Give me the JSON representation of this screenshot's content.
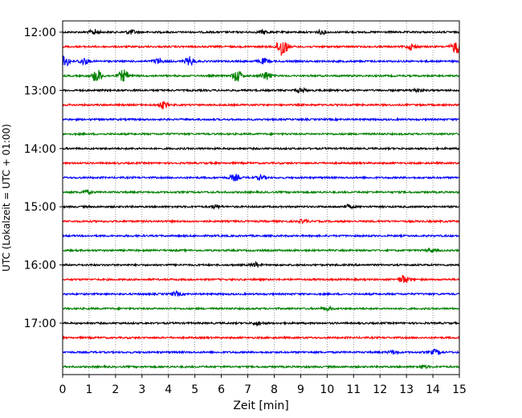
{
  "chart_data": {
    "type": "line",
    "title": "",
    "xlabel": "Zeit  [min]",
    "ylabel": "UTC (Lokalzeit = UTC + 01:00)",
    "xlim": [
      0,
      15
    ],
    "x_ticks": [
      0,
      1,
      2,
      3,
      4,
      5,
      6,
      7,
      8,
      9,
      10,
      11,
      12,
      13,
      14,
      15
    ],
    "y_tick_labels": [
      "12:00",
      "13:00",
      "14:00",
      "15:00",
      "16:00",
      "17:00"
    ],
    "vertical_grid": "dotted",
    "trace_interval_min": 15,
    "trace_colors": [
      "#000000",
      "#ff0000",
      "#0000ff",
      "#008000"
    ],
    "series": [
      {
        "start": "12:00",
        "color": "#000000",
        "events": [
          {
            "t": 1.2,
            "amp": 3
          },
          {
            "t": 2.6,
            "amp": 2.5
          },
          {
            "t": 7.6,
            "amp": 2
          },
          {
            "t": 9.8,
            "amp": 2
          }
        ]
      },
      {
        "start": "12:15",
        "color": "#ff0000",
        "events": [
          {
            "t": 8.3,
            "amp": 13
          },
          {
            "t": 13.2,
            "amp": 3.5
          },
          {
            "t": 14.9,
            "amp": 8
          }
        ]
      },
      {
        "start": "12:30",
        "color": "#0000ff",
        "events": [
          {
            "t": 0.1,
            "amp": 6
          },
          {
            "t": 0.8,
            "amp": 4
          },
          {
            "t": 3.6,
            "amp": 3
          },
          {
            "t": 4.8,
            "amp": 5
          },
          {
            "t": 7.6,
            "amp": 3
          }
        ]
      },
      {
        "start": "12:45",
        "color": "#008000",
        "events": [
          {
            "t": 1.3,
            "amp": 8
          },
          {
            "t": 2.3,
            "amp": 7
          },
          {
            "t": 6.6,
            "amp": 7
          },
          {
            "t": 7.7,
            "amp": 5
          }
        ]
      },
      {
        "start": "13:00",
        "color": "#000000",
        "events": [
          {
            "t": 9.0,
            "amp": 2.5
          },
          {
            "t": 13.4,
            "amp": 2
          }
        ]
      },
      {
        "start": "13:15",
        "color": "#ff0000",
        "events": [
          {
            "t": 3.8,
            "amp": 4
          }
        ]
      },
      {
        "start": "13:30",
        "color": "#0000ff",
        "events": []
      },
      {
        "start": "13:45",
        "color": "#008000",
        "events": []
      },
      {
        "start": "14:00",
        "color": "#000000",
        "events": []
      },
      {
        "start": "14:15",
        "color": "#ff0000",
        "events": []
      },
      {
        "start": "14:30",
        "color": "#0000ff",
        "events": [
          {
            "t": 6.5,
            "amp": 3.5
          },
          {
            "t": 7.5,
            "amp": 2.5
          }
        ]
      },
      {
        "start": "14:45",
        "color": "#008000",
        "events": [
          {
            "t": 0.9,
            "amp": 2
          }
        ]
      },
      {
        "start": "15:00",
        "color": "#000000",
        "events": [
          {
            "t": 5.8,
            "amp": 2
          },
          {
            "t": 10.8,
            "amp": 2
          }
        ]
      },
      {
        "start": "15:15",
        "color": "#ff0000",
        "events": [
          {
            "t": 9.1,
            "amp": 2
          }
        ]
      },
      {
        "start": "15:30",
        "color": "#0000ff",
        "events": []
      },
      {
        "start": "15:45",
        "color": "#008000",
        "events": [
          {
            "t": 13.9,
            "amp": 2
          }
        ]
      },
      {
        "start": "16:00",
        "color": "#000000",
        "events": [
          {
            "t": 7.3,
            "amp": 2.5
          }
        ]
      },
      {
        "start": "16:15",
        "color": "#ff0000",
        "events": [
          {
            "t": 12.9,
            "amp": 5
          }
        ]
      },
      {
        "start": "16:30",
        "color": "#0000ff",
        "events": [
          {
            "t": 4.3,
            "amp": 2.5
          }
        ]
      },
      {
        "start": "16:45",
        "color": "#008000",
        "events": [
          {
            "t": 10.0,
            "amp": 2
          }
        ]
      },
      {
        "start": "17:00",
        "color": "#000000",
        "events": [
          {
            "t": 7.4,
            "amp": 2
          }
        ]
      },
      {
        "start": "17:15",
        "color": "#ff0000",
        "events": []
      },
      {
        "start": "17:30",
        "color": "#0000ff",
        "events": [
          {
            "t": 12.5,
            "amp": 2
          },
          {
            "t": 14.1,
            "amp": 3
          }
        ]
      },
      {
        "start": "17:45",
        "color": "#008000",
        "events": [
          {
            "t": 13.6,
            "amp": 2
          }
        ]
      }
    ]
  }
}
